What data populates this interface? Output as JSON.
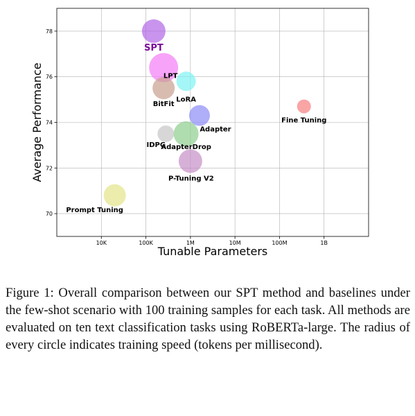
{
  "chart_data": {
    "type": "scatter",
    "x_scale": "log",
    "xlabel": "Tunable Parameters",
    "ylabel": "Average Performance",
    "xlim": [
      1000,
      10000000000
    ],
    "ylim": [
      69,
      79
    ],
    "grid": true,
    "x_ticks": [
      {
        "value": 10000,
        "label": "10K"
      },
      {
        "value": 100000,
        "label": "100K"
      },
      {
        "value": 1000000,
        "label": "1M"
      },
      {
        "value": 10000000,
        "label": "10M"
      },
      {
        "value": 100000000,
        "label": "100M"
      },
      {
        "value": 1000000000,
        "label": "1B"
      }
    ],
    "y_ticks": [
      {
        "value": 70,
        "label": "70"
      },
      {
        "value": 72,
        "label": "72"
      },
      {
        "value": 74,
        "label": "74"
      },
      {
        "value": 76,
        "label": "76"
      },
      {
        "value": 78,
        "label": "78"
      }
    ],
    "points": [
      {
        "name": "SPT",
        "x": 150000,
        "y": 78.0,
        "color": "#b267e6",
        "label_color": "#7a0f9a",
        "highlight": true
      },
      {
        "name": "LPT",
        "x": 250000,
        "y": 76.4,
        "color": "#f47cf7",
        "label_color": "#000000",
        "highlight": false
      },
      {
        "name": "LoRA",
        "x": 800000,
        "y": 75.8,
        "color": "#7ff2f2",
        "label_color": "#000000",
        "highlight": false
      },
      {
        "name": "BitFit",
        "x": 250000,
        "y": 75.5,
        "color": "#c9a08f",
        "label_color": "#000000",
        "highlight": false
      },
      {
        "name": "Adapter",
        "x": 1600000,
        "y": 74.3,
        "color": "#8c8cf7",
        "label_color": "#000000",
        "highlight": false
      },
      {
        "name": "Fine Tuning",
        "x": 355000000,
        "y": 74.7,
        "color": "#f77f7f",
        "label_color": "#000000",
        "highlight": false
      },
      {
        "name": "IDPG",
        "x": 280000,
        "y": 73.5,
        "color": "#c6c6c6",
        "label_color": "#000000",
        "highlight": false
      },
      {
        "name": "AdapterDrop",
        "x": 800000,
        "y": 73.5,
        "color": "#8fce8f",
        "label_color": "#000000",
        "highlight": false
      },
      {
        "name": "P-Tuning V2",
        "x": 1000000,
        "y": 72.3,
        "color": "#c68ec6",
        "label_color": "#000000",
        "highlight": false
      },
      {
        "name": "Prompt Tuning",
        "x": 20000,
        "y": 70.8,
        "color": "#e4e48a",
        "label_color": "#000000",
        "highlight": false
      }
    ]
  },
  "caption": {
    "text": "Figure 1: Overall comparison between our SPT method and baselines under the few-shot scenario with 100 training samples for each task. All methods are evaluated on ten text classification tasks using RoBERTa-large. The radius of every circle indicates training speed (tokens per millisecond)."
  }
}
